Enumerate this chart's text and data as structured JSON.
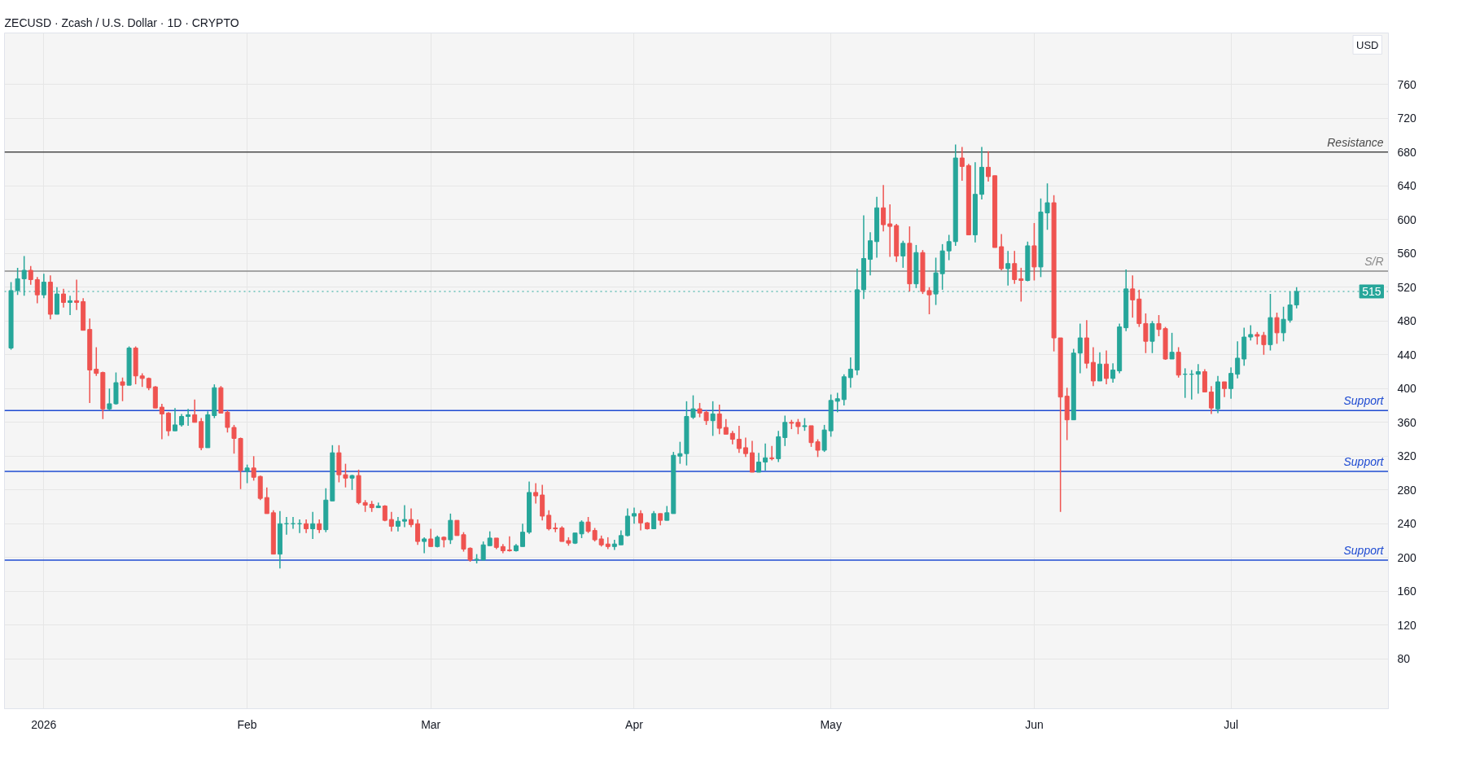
{
  "chart_data": {
    "type": "candlestick",
    "title": "ZECUSD · Zcash / U.S. Dollar · 1D · CRYPTO",
    "annotations": [
      "USD"
    ],
    "x": [
      "2025-12-27",
      "2025-12-28",
      "2025-12-29",
      "2025-12-30",
      "2025-12-31",
      "2026-01-01",
      "2026-01-02",
      "2026-01-03",
      "2026-01-04",
      "2026-01-05",
      "2026-01-06",
      "2026-01-07",
      "2026-01-08",
      "2026-01-09",
      "2026-01-10",
      "2026-01-11",
      "2026-01-12",
      "2026-01-13",
      "2026-01-14",
      "2026-01-15",
      "2026-01-16",
      "2026-01-17",
      "2026-01-18",
      "2026-01-19",
      "2026-01-20",
      "2026-01-21",
      "2026-01-22",
      "2026-01-23",
      "2026-01-24",
      "2026-01-25",
      "2026-01-26",
      "2026-01-27",
      "2026-01-28",
      "2026-01-29",
      "2026-01-30",
      "2026-01-31",
      "2026-02-01",
      "2026-02-02",
      "2026-02-03",
      "2026-02-04",
      "2026-02-05",
      "2026-02-06",
      "2026-02-07",
      "2026-02-08",
      "2026-02-09",
      "2026-02-10",
      "2026-02-11",
      "2026-02-12",
      "2026-02-13",
      "2026-02-14",
      "2026-02-15",
      "2026-02-16",
      "2026-02-17",
      "2026-02-18",
      "2026-02-19",
      "2026-02-20",
      "2026-02-21",
      "2026-02-22",
      "2026-02-23",
      "2026-02-24",
      "2026-02-25",
      "2026-02-26",
      "2026-02-27",
      "2026-02-28",
      "2026-03-01",
      "2026-03-02",
      "2026-03-03",
      "2026-03-04",
      "2026-03-05",
      "2026-03-06",
      "2026-03-07",
      "2026-03-08",
      "2026-03-09",
      "2026-03-10",
      "2026-03-11",
      "2026-03-12",
      "2026-03-13",
      "2026-03-14",
      "2026-03-15",
      "2026-03-16",
      "2026-03-17",
      "2026-03-18",
      "2026-03-19",
      "2026-03-20",
      "2026-03-21",
      "2026-03-22",
      "2026-03-23",
      "2026-03-24",
      "2026-03-25",
      "2026-03-26",
      "2026-03-27",
      "2026-03-28",
      "2026-03-29",
      "2026-03-30",
      "2026-03-31",
      "2026-04-01",
      "2026-04-02",
      "2026-04-03",
      "2026-04-04",
      "2026-04-05",
      "2026-04-06",
      "2026-04-07",
      "2026-04-08",
      "2026-04-09",
      "2026-04-10",
      "2026-04-11",
      "2026-04-12",
      "2026-04-13",
      "2026-04-14",
      "2026-04-15",
      "2026-04-16",
      "2026-04-17",
      "2026-04-18",
      "2026-04-19",
      "2026-04-20",
      "2026-04-21",
      "2026-04-22",
      "2026-04-23",
      "2026-04-24",
      "2026-04-25",
      "2026-04-26",
      "2026-04-27",
      "2026-04-28",
      "2026-04-29",
      "2026-04-30",
      "2026-05-01",
      "2026-05-02",
      "2026-05-03",
      "2026-05-04",
      "2026-05-05",
      "2026-05-06",
      "2026-05-07",
      "2026-05-08",
      "2026-05-09",
      "2026-05-10",
      "2026-05-11",
      "2026-05-12",
      "2026-05-13",
      "2026-05-14",
      "2026-05-15",
      "2026-05-16",
      "2026-05-17",
      "2026-05-18",
      "2026-05-19",
      "2026-05-20",
      "2026-05-21",
      "2026-05-22",
      "2026-05-23",
      "2026-05-24",
      "2026-05-25",
      "2026-05-26",
      "2026-05-27",
      "2026-05-28",
      "2026-05-29",
      "2026-05-30",
      "2026-05-31",
      "2026-06-01",
      "2026-06-02",
      "2026-06-03",
      "2026-06-04",
      "2026-06-05",
      "2026-06-06",
      "2026-06-07",
      "2026-06-08",
      "2026-06-09",
      "2026-06-10",
      "2026-06-11",
      "2026-06-12",
      "2026-06-13",
      "2026-06-14",
      "2026-06-15",
      "2026-06-16",
      "2026-06-17",
      "2026-06-18",
      "2026-06-19",
      "2026-06-20",
      "2026-06-21",
      "2026-06-22",
      "2026-06-23",
      "2026-06-24",
      "2026-06-25",
      "2026-06-26",
      "2026-06-27",
      "2026-06-28",
      "2026-06-29",
      "2026-06-30",
      "2026-07-01",
      "2026-07-02",
      "2026-07-03",
      "2026-07-04",
      "2026-07-05",
      "2026-07-06",
      "2026-07-07",
      "2026-07-08",
      "2026-07-09",
      "2026-07-10",
      "2026-07-11"
    ],
    "ohlc": [
      [
        448,
        526,
        446,
        516
      ],
      [
        516,
        543,
        511,
        530
      ],
      [
        530,
        557,
        510,
        540
      ],
      [
        540,
        545,
        523,
        529
      ],
      [
        529,
        532,
        501,
        511
      ],
      [
        511,
        536,
        507,
        526
      ],
      [
        526,
        534,
        482,
        488
      ],
      [
        488,
        520,
        488,
        512
      ],
      [
        512,
        518,
        496,
        502
      ],
      [
        502,
        510,
        487,
        504
      ],
      [
        504,
        529,
        493,
        502
      ],
      [
        503,
        507,
        469,
        469
      ],
      [
        470,
        483,
        383,
        422
      ],
      [
        423,
        449,
        415,
        418
      ],
      [
        419,
        420,
        364,
        376
      ],
      [
        376,
        400,
        374,
        382
      ],
      [
        382,
        419,
        381,
        407
      ],
      [
        408,
        413,
        385,
        404
      ],
      [
        404,
        450,
        404,
        448
      ],
      [
        448,
        450,
        405,
        415
      ],
      [
        415,
        418,
        402,
        412
      ],
      [
        412,
        413,
        398,
        401
      ],
      [
        402,
        403,
        377,
        377
      ],
      [
        378,
        382,
        340,
        370
      ],
      [
        371,
        372,
        344,
        350
      ],
      [
        350,
        377,
        350,
        357
      ],
      [
        357,
        370,
        355,
        367
      ],
      [
        367,
        376,
        356,
        369
      ],
      [
        369,
        387,
        360,
        360
      ],
      [
        361,
        365,
        327,
        330
      ],
      [
        330,
        373,
        330,
        369
      ],
      [
        368,
        405,
        365,
        401
      ],
      [
        401,
        403,
        371,
        371
      ],
      [
        372,
        374,
        348,
        354
      ],
      [
        354,
        357,
        323,
        341
      ],
      [
        341,
        342,
        281,
        303
      ],
      [
        302,
        310,
        288,
        306
      ],
      [
        306,
        320,
        291,
        295
      ],
      [
        296,
        297,
        268,
        270
      ],
      [
        271,
        283,
        252,
        252
      ],
      [
        253,
        256,
        204,
        204
      ],
      [
        204,
        255,
        187,
        240
      ],
      [
        240,
        248,
        227,
        240
      ],
      [
        240,
        248,
        234,
        240
      ],
      [
        240,
        245,
        229,
        240
      ],
      [
        240,
        245,
        229,
        234
      ],
      [
        234,
        254,
        222,
        240
      ],
      [
        240,
        245,
        229,
        233
      ],
      [
        233,
        282,
        230,
        268
      ],
      [
        267,
        333,
        267,
        324
      ],
      [
        324,
        333,
        289,
        298
      ],
      [
        298,
        311,
        283,
        294
      ],
      [
        294,
        298,
        280,
        297
      ],
      [
        297,
        304,
        263,
        265
      ],
      [
        265,
        268,
        254,
        262
      ],
      [
        263,
        267,
        254,
        259
      ],
      [
        259,
        265,
        259,
        261
      ],
      [
        261,
        262,
        243,
        244
      ],
      [
        245,
        254,
        231,
        237
      ],
      [
        237,
        248,
        231,
        243
      ],
      [
        243,
        262,
        236,
        245
      ],
      [
        245,
        258,
        236,
        239
      ],
      [
        240,
        245,
        215,
        219
      ],
      [
        219,
        224,
        205,
        222
      ],
      [
        222,
        234,
        213,
        213
      ],
      [
        213,
        226,
        212,
        224
      ],
      [
        224,
        225,
        212,
        221
      ],
      [
        221,
        252,
        216,
        244
      ],
      [
        244,
        244,
        226,
        226
      ],
      [
        227,
        230,
        207,
        210
      ],
      [
        211,
        212,
        195,
        197
      ],
      [
        197,
        204,
        193,
        198
      ],
      [
        197,
        219,
        197,
        215
      ],
      [
        214,
        231,
        214,
        223
      ],
      [
        223,
        223,
        210,
        212
      ],
      [
        213,
        216,
        205,
        208
      ],
      [
        209,
        225,
        207,
        208
      ],
      [
        208,
        216,
        207,
        214
      ],
      [
        213,
        240,
        213,
        230
      ],
      [
        230,
        290,
        228,
        277
      ],
      [
        277,
        288,
        264,
        273
      ],
      [
        274,
        286,
        244,
        249
      ],
      [
        250,
        256,
        232,
        234
      ],
      [
        235,
        241,
        230,
        234
      ],
      [
        235,
        237,
        219,
        219
      ],
      [
        220,
        224,
        214,
        217
      ],
      [
        217,
        229,
        216,
        229
      ],
      [
        228,
        244,
        223,
        242
      ],
      [
        242,
        248,
        229,
        231
      ],
      [
        232,
        235,
        219,
        221
      ],
      [
        222,
        226,
        213,
        215
      ],
      [
        216,
        224,
        210,
        213
      ],
      [
        213,
        221,
        209,
        216
      ],
      [
        215,
        232,
        215,
        226
      ],
      [
        226,
        258,
        225,
        249
      ],
      [
        249,
        259,
        240,
        252
      ],
      [
        252,
        256,
        232,
        241
      ],
      [
        241,
        242,
        233,
        234
      ],
      [
        234,
        255,
        234,
        252
      ],
      [
        252,
        252,
        238,
        244
      ],
      [
        244,
        261,
        244,
        253
      ],
      [
        252,
        325,
        252,
        321
      ],
      [
        320,
        337,
        311,
        323
      ],
      [
        323,
        385,
        309,
        367
      ],
      [
        366,
        392,
        364,
        376
      ],
      [
        376,
        383,
        366,
        371
      ],
      [
        372,
        374,
        357,
        362
      ],
      [
        362,
        385,
        344,
        370
      ],
      [
        370,
        381,
        346,
        353
      ],
      [
        354,
        364,
        346,
        346
      ],
      [
        347,
        350,
        334,
        340
      ],
      [
        340,
        356,
        324,
        329
      ],
      [
        330,
        342,
        319,
        323
      ],
      [
        324,
        338,
        301,
        301
      ],
      [
        301,
        324,
        301,
        313
      ],
      [
        313,
        335,
        303,
        318
      ],
      [
        318,
        332,
        315,
        317
      ],
      [
        317,
        350,
        313,
        343
      ],
      [
        342,
        368,
        332,
        360
      ],
      [
        360,
        363,
        352,
        359
      ],
      [
        360,
        364,
        346,
        355
      ],
      [
        355,
        365,
        350,
        356
      ],
      [
        356,
        356,
        331,
        336
      ],
      [
        337,
        340,
        319,
        327
      ],
      [
        327,
        357,
        325,
        351
      ],
      [
        350,
        393,
        343,
        386
      ],
      [
        385,
        395,
        372,
        388
      ],
      [
        387,
        417,
        380,
        414
      ],
      [
        413,
        437,
        401,
        423
      ],
      [
        422,
        542,
        416,
        517
      ],
      [
        517,
        605,
        506,
        554
      ],
      [
        553,
        585,
        534,
        575
      ],
      [
        574,
        627,
        555,
        614
      ],
      [
        614,
        641,
        586,
        594
      ],
      [
        595,
        618,
        556,
        592
      ],
      [
        593,
        595,
        550,
        557
      ],
      [
        557,
        575,
        543,
        572
      ],
      [
        572,
        592,
        515,
        524
      ],
      [
        524,
        570,
        519,
        561
      ],
      [
        561,
        564,
        512,
        515
      ],
      [
        516,
        520,
        488,
        511
      ],
      [
        512,
        555,
        499,
        537
      ],
      [
        536,
        571,
        517,
        563
      ],
      [
        563,
        582,
        552,
        574
      ],
      [
        574,
        689,
        569,
        673
      ],
      [
        673,
        686,
        646,
        663
      ],
      [
        664,
        666,
        582,
        582
      ],
      [
        582,
        668,
        573,
        630
      ],
      [
        630,
        686,
        624,
        662
      ],
      [
        662,
        681,
        645,
        651
      ],
      [
        652,
        652,
        567,
        567
      ],
      [
        568,
        583,
        540,
        542
      ],
      [
        542,
        563,
        522,
        548
      ],
      [
        548,
        563,
        524,
        529
      ],
      [
        530,
        543,
        503,
        528
      ],
      [
        528,
        574,
        527,
        569
      ],
      [
        569,
        596,
        528,
        544
      ],
      [
        544,
        625,
        532,
        609
      ],
      [
        608,
        643,
        588,
        620
      ],
      [
        620,
        629,
        444,
        460
      ],
      [
        460,
        460,
        254,
        390
      ],
      [
        391,
        401,
        339,
        363
      ],
      [
        363,
        447,
        363,
        442
      ],
      [
        442,
        477,
        418,
        460
      ],
      [
        460,
        481,
        424,
        430
      ],
      [
        431,
        449,
        403,
        409
      ],
      [
        409,
        443,
        409,
        429
      ],
      [
        429,
        445,
        405,
        412
      ],
      [
        412,
        430,
        407,
        422
      ],
      [
        421,
        477,
        418,
        473
      ],
      [
        472,
        541,
        468,
        518
      ],
      [
        518,
        534,
        484,
        505
      ],
      [
        506,
        517,
        473,
        477
      ],
      [
        477,
        489,
        442,
        456
      ],
      [
        456,
        480,
        442,
        477
      ],
      [
        477,
        487,
        462,
        470
      ],
      [
        471,
        473,
        434,
        435
      ],
      [
        435,
        466,
        435,
        443
      ],
      [
        443,
        449,
        413,
        416
      ],
      [
        417,
        424,
        389,
        417
      ],
      [
        417,
        422,
        387,
        417
      ],
      [
        417,
        429,
        394,
        420
      ],
      [
        420,
        423,
        396,
        396
      ],
      [
        396,
        403,
        370,
        377
      ],
      [
        376,
        415,
        371,
        408
      ],
      [
        408,
        408,
        390,
        400
      ],
      [
        400,
        425,
        388,
        418
      ],
      [
        417,
        456,
        412,
        436
      ],
      [
        435,
        472,
        427,
        461
      ],
      [
        461,
        475,
        457,
        464
      ],
      [
        464,
        467,
        452,
        462
      ],
      [
        463,
        467,
        440,
        452
      ],
      [
        452,
        512,
        445,
        484
      ],
      [
        484,
        490,
        453,
        466
      ],
      [
        466,
        497,
        456,
        482
      ],
      [
        481,
        515,
        478,
        499
      ],
      [
        499,
        520,
        495,
        515
      ]
    ],
    "xlim": [
      "2025-12-26",
      "2026-07-25"
    ],
    "xticks": [
      {
        "value": "2026-01-01",
        "label": "2026"
      },
      {
        "value": "2026-02-01",
        "label": "Feb"
      },
      {
        "value": "2026-03-01",
        "label": "Mar"
      },
      {
        "value": "2026-04-01",
        "label": "Apr"
      },
      {
        "value": "2026-05-01",
        "label": "May"
      },
      {
        "value": "2026-06-01",
        "label": "Jun"
      },
      {
        "value": "2026-07-01",
        "label": "Jul"
      }
    ],
    "ylim": [
      21,
      821
    ],
    "yticks": [
      80,
      120,
      160,
      200,
      240,
      280,
      320,
      360,
      400,
      440,
      480,
      520,
      560,
      600,
      640,
      680,
      720,
      760
    ],
    "grid": true,
    "ref_lines": [
      {
        "axis": "y",
        "value": 680,
        "label": "Resistance",
        "color": "#4a4a4a"
      },
      {
        "axis": "y",
        "value": 539,
        "label": "S/R",
        "color": "#8a8a8a"
      },
      {
        "axis": "y",
        "value": 374,
        "label": "Support",
        "color": "#1e4bd2"
      },
      {
        "axis": "y",
        "value": 302,
        "label": "Support",
        "color": "#1e4bd2"
      },
      {
        "axis": "y",
        "value": 197,
        "label": "Support",
        "color": "#1e4bd2"
      },
      {
        "axis": "y",
        "value": 515,
        "label": "515",
        "color": "#26a69a",
        "line_style": "dotted"
      }
    ]
  }
}
